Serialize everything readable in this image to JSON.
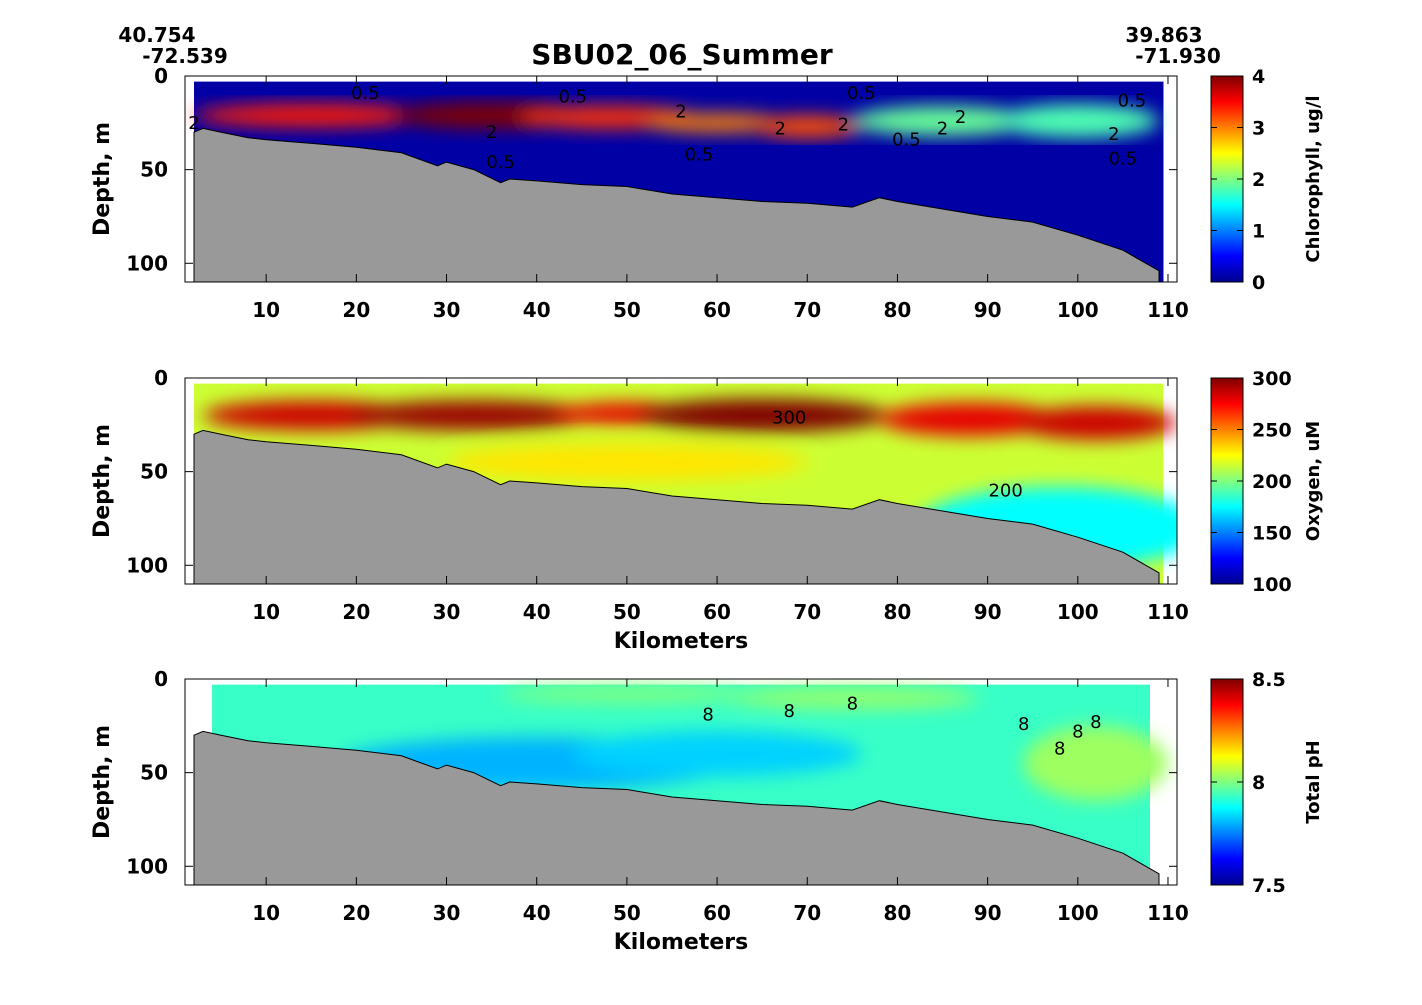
{
  "figure": {
    "title": "SBU02_06_Summer",
    "start_lat": "40.754",
    "start_lon": "-72.539",
    "end_lat": "39.863",
    "end_lon": "-71.930"
  },
  "colors": {
    "bathymetry": "#999999",
    "contour": "#000000",
    "jet": [
      "#00008f",
      "#0000ff",
      "#0080ff",
      "#00ffff",
      "#80ff80",
      "#ffff00",
      "#ff8000",
      "#ff0000",
      "#800000"
    ]
  },
  "chart_data": [
    {
      "type": "heatmap",
      "title": "SBU02_06_Summer",
      "xlabel": "",
      "ylabel": "Depth, m",
      "colorbar_label": "Chlorophyll, ug/l",
      "xlim": [
        1,
        111
      ],
      "ylim": [
        0,
        110
      ],
      "y_reversed": true,
      "xticks": [
        10,
        20,
        30,
        40,
        50,
        60,
        70,
        80,
        90,
        100,
        110
      ],
      "yticks": [
        0,
        50,
        100
      ],
      "clim": [
        0,
        4
      ],
      "cticks": [
        0,
        1,
        2,
        3,
        4
      ],
      "data_xstart": 2,
      "data_xend": 109.5,
      "background_value": 0.1,
      "blobs": [
        {
          "x": 15,
          "z": 21,
          "rx": 13,
          "rz": 6,
          "v": 3.4
        },
        {
          "x": 35,
          "z": 21,
          "rx": 11,
          "rz": 7,
          "v": 4.0
        },
        {
          "x": 48,
          "z": 22,
          "rx": 10,
          "rz": 6,
          "v": 3.3
        },
        {
          "x": 60,
          "z": 25,
          "rx": 8,
          "rz": 5,
          "v": 3.0
        },
        {
          "x": 70,
          "z": 27,
          "rx": 6,
          "rz": 6,
          "v": 3.2
        },
        {
          "x": 85,
          "z": 24,
          "rx": 10,
          "rz": 8,
          "v": 1.9
        },
        {
          "x": 100,
          "z": 24,
          "rx": 9,
          "rz": 9,
          "v": 1.8
        }
      ],
      "contour_labels": [
        {
          "x": 21,
          "z": 9,
          "text": "0.5"
        },
        {
          "x": 44,
          "z": 11,
          "text": "0.5"
        },
        {
          "x": 76,
          "z": 9,
          "text": "0.5"
        },
        {
          "x": 106,
          "z": 13,
          "text": "0.5"
        },
        {
          "x": 36,
          "z": 46,
          "text": "0.5"
        },
        {
          "x": 58,
          "z": 42,
          "text": "0.5"
        },
        {
          "x": 81,
          "z": 34,
          "text": "0.5"
        },
        {
          "x": 105,
          "z": 44,
          "text": "0.5"
        },
        {
          "x": 2,
          "z": 25,
          "text": "2"
        },
        {
          "x": 35,
          "z": 30,
          "text": "2"
        },
        {
          "x": 56,
          "z": 19,
          "text": "2"
        },
        {
          "x": 67,
          "z": 28,
          "text": "2"
        },
        {
          "x": 74,
          "z": 26,
          "text": "2"
        },
        {
          "x": 85,
          "z": 28,
          "text": "2"
        },
        {
          "x": 87,
          "z": 22,
          "text": "2"
        },
        {
          "x": 104,
          "z": 31,
          "text": "2"
        }
      ]
    },
    {
      "type": "heatmap",
      "xlabel": "Kilometers",
      "ylabel": "Depth, m",
      "colorbar_label": "Oxygen, uM",
      "xlim": [
        1,
        111
      ],
      "ylim": [
        0,
        110
      ],
      "y_reversed": true,
      "xticks": [
        10,
        20,
        30,
        40,
        50,
        60,
        70,
        80,
        90,
        100,
        110
      ],
      "yticks": [
        0,
        50,
        100
      ],
      "clim": [
        100,
        300
      ],
      "cticks": [
        100,
        150,
        200,
        250,
        300
      ],
      "data_xstart": 2,
      "data_xend": 109.5,
      "background_value": 215,
      "blobs": [
        {
          "x": 15,
          "z": 20,
          "rx": 12,
          "rz": 8,
          "v": 285
        },
        {
          "x": 33,
          "z": 20,
          "rx": 14,
          "rz": 8,
          "v": 295
        },
        {
          "x": 50,
          "z": 19,
          "rx": 8,
          "rz": 6,
          "v": 280
        },
        {
          "x": 65,
          "z": 20,
          "rx": 14,
          "rz": 9,
          "v": 300
        },
        {
          "x": 88,
          "z": 22,
          "rx": 10,
          "rz": 9,
          "v": 280
        },
        {
          "x": 102,
          "z": 24,
          "rx": 9,
          "rz": 9,
          "v": 285
        },
        {
          "x": 50,
          "z": 45,
          "rx": 20,
          "rz": 10,
          "v": 230
        },
        {
          "x": 98,
          "z": 80,
          "rx": 16,
          "rz": 22,
          "v": 175
        }
      ],
      "contour_labels": [
        {
          "x": 68,
          "z": 21,
          "text": "300"
        },
        {
          "x": 92,
          "z": 60,
          "text": "200"
        }
      ]
    },
    {
      "type": "heatmap",
      "xlabel": "Kilometers",
      "ylabel": "Depth, m",
      "colorbar_label": "Total pH",
      "xlim": [
        1,
        111
      ],
      "ylim": [
        0,
        110
      ],
      "y_reversed": true,
      "xticks": [
        10,
        20,
        30,
        40,
        50,
        60,
        70,
        80,
        90,
        100,
        110
      ],
      "yticks": [
        0,
        50,
        100
      ],
      "clim": [
        7.5,
        8.5
      ],
      "cticks": [
        7.5,
        8,
        8.5
      ],
      "cticklabels": [
        "7.5",
        "8",
        "8.5"
      ],
      "data_xstart": 4,
      "data_xend": 108,
      "background_value": 7.93,
      "blobs": [
        {
          "x": 40,
          "z": 45,
          "rx": 22,
          "rz": 14,
          "v": 7.8
        },
        {
          "x": 60,
          "z": 40,
          "rx": 16,
          "rz": 12,
          "v": 7.83
        },
        {
          "x": 75,
          "z": 10,
          "rx": 14,
          "rz": 6,
          "v": 8.02
        },
        {
          "x": 50,
          "z": 8,
          "rx": 14,
          "rz": 5,
          "v": 8.0
        },
        {
          "x": 102,
          "z": 45,
          "rx": 8,
          "rz": 20,
          "v": 8.03
        }
      ],
      "contour_labels": [
        {
          "x": 59,
          "z": 19,
          "text": "8"
        },
        {
          "x": 68,
          "z": 17,
          "text": "8"
        },
        {
          "x": 75,
          "z": 13,
          "text": "8"
        },
        {
          "x": 94,
          "z": 24,
          "text": "8"
        },
        {
          "x": 98,
          "z": 37,
          "text": "8"
        },
        {
          "x": 100,
          "z": 28,
          "text": "8"
        },
        {
          "x": 102,
          "z": 23,
          "text": "8"
        }
      ]
    }
  ],
  "bathymetry": {
    "x": [
      2,
      3,
      5,
      8,
      10,
      15,
      20,
      25,
      29,
      30,
      33,
      36,
      37,
      40,
      45,
      50,
      55,
      60,
      65,
      70,
      75,
      78,
      80,
      85,
      90,
      95,
      100,
      105,
      109
    ],
    "depth": [
      30,
      28,
      30,
      33,
      34,
      36,
      38,
      41,
      48,
      46,
      50,
      57,
      55,
      56,
      58,
      59,
      63,
      65,
      67,
      68,
      70,
      65,
      67,
      71,
      75,
      78,
      85,
      93,
      104
    ]
  }
}
